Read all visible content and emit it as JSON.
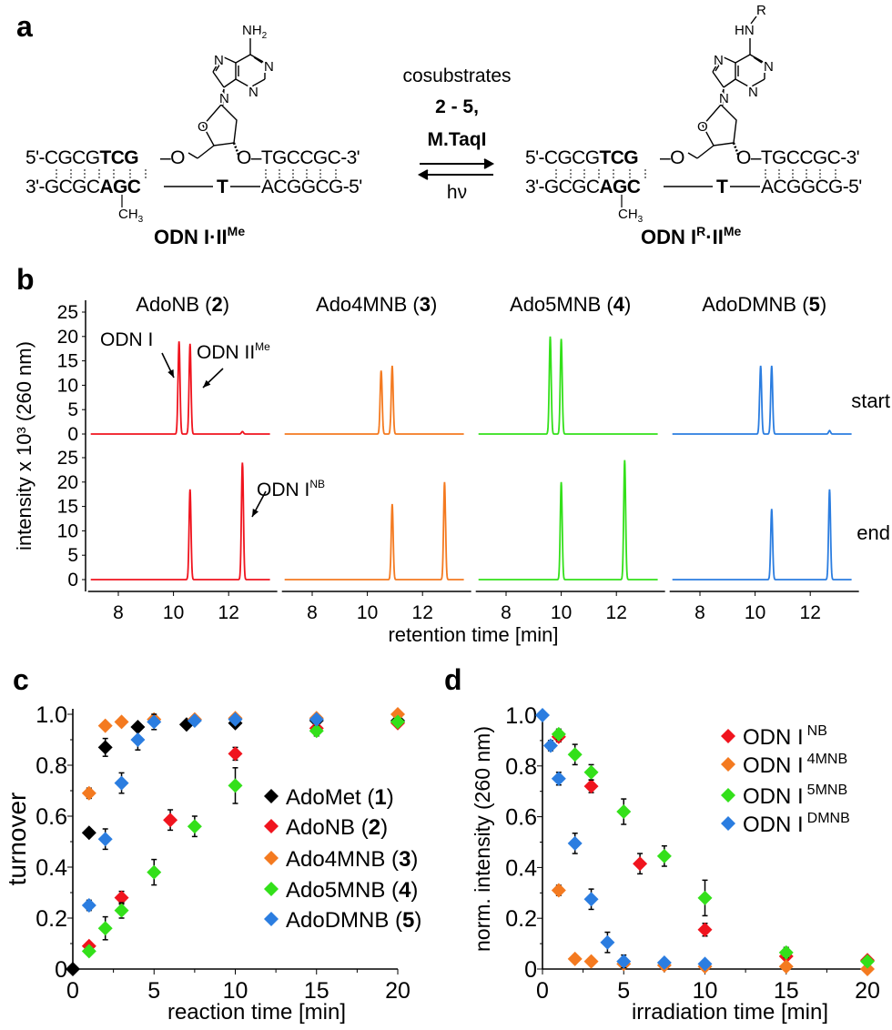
{
  "scheme": {
    "panel_label": "a",
    "atoms": {
      "n": "N",
      "o": "O",
      "nh": "NH",
      "sub2": "2",
      "hn": "HN",
      "r": "R"
    },
    "strands": {
      "top_5": "5'-CGCG",
      "top_bold": "TCG",
      "top_o": "–O",
      "top_3": "O–TGCCGC-3'",
      "bot_3": "3'-GCGC",
      "bot_bold": "AGC",
      "bot_t": "T",
      "bot_5": "ACGGCG-5'",
      "ch": "CH",
      "sub3": "3"
    },
    "left_label": {
      "main": "ODN I·II",
      "sup": "Me"
    },
    "right_label": {
      "main": "ODN I",
      "sup_r": "R",
      "mid": "·II",
      "sup": "Me"
    },
    "conditions": {
      "line1": "cosubstrates",
      "line2": "2 - 5,",
      "line3": "M.TaqI",
      "reverse": "hν"
    }
  },
  "chart_data": [
    {
      "panel_label": "b",
      "type": "line",
      "ylabel": "intensity x 10³ (260 nm)",
      "xlabel": "retention time [min]",
      "yticks": [
        0,
        5,
        10,
        15,
        20,
        25
      ],
      "xticks": [
        8,
        10,
        12
      ],
      "xlim": [
        7,
        13.5
      ],
      "ylim": [
        0,
        25
      ],
      "rows": [
        "start",
        "end"
      ],
      "annotations": {
        "odn1": "ODN I",
        "odn2": "ODN II",
        "odn2_sup": "Me",
        "odnnb": "ODN I",
        "odnnb_sup": "NB"
      },
      "panels": [
        {
          "name": "AdoNB",
          "num": "2",
          "color": "#f0141e",
          "start_peaks": [
            [
              10.2,
              19
            ],
            [
              10.6,
              18.5
            ],
            [
              12.5,
              0.5
            ]
          ],
          "end_peaks": [
            [
              10.6,
              18.5
            ],
            [
              12.5,
              24
            ]
          ]
        },
        {
          "name": "Ado4MNB",
          "num": "3",
          "color": "#f47a20",
          "start_peaks": [
            [
              10.5,
              13
            ],
            [
              10.9,
              14
            ]
          ],
          "end_peaks": [
            [
              10.9,
              15.5
            ],
            [
              12.8,
              20
            ]
          ]
        },
        {
          "name": "Ado5MNB",
          "num": "4",
          "color": "#33e01a",
          "start_peaks": [
            [
              9.6,
              20
            ],
            [
              10.0,
              19.5
            ]
          ],
          "end_peaks": [
            [
              10.0,
              20
            ],
            [
              12.3,
              24.5
            ]
          ]
        },
        {
          "name": "AdoDMNB",
          "num": "5",
          "color": "#2b7de0",
          "start_peaks": [
            [
              10.2,
              14
            ],
            [
              10.6,
              14
            ],
            [
              12.7,
              0.7
            ]
          ],
          "end_peaks": [
            [
              10.6,
              14.5
            ],
            [
              12.7,
              18.5
            ]
          ]
        }
      ]
    },
    {
      "panel_label": "c",
      "type": "scatter",
      "ylabel": "turnover",
      "xlabel": "reaction time [min]",
      "xlim": [
        0,
        20
      ],
      "ylim": [
        0,
        1.0
      ],
      "xticks": [
        "0",
        "5",
        "10",
        "15",
        "20"
      ],
      "yticks": [
        "0",
        "0.2",
        "0.4",
        "0.6",
        "0.8",
        "1.0"
      ],
      "legend_position": "right",
      "series": [
        {
          "name": "AdoMet",
          "num": "1",
          "color": "#000000",
          "points": [
            [
              0,
              0,
              0
            ],
            [
              1,
              0.535,
              0.005
            ],
            [
              2,
              0.87,
              0.035
            ],
            [
              4,
              0.95,
              0.015
            ],
            [
              7,
              0.96,
              0.005
            ],
            [
              10,
              0.965,
              0.01
            ],
            [
              15,
              0.975,
              0.01
            ],
            [
              20,
              0.975,
              0.01
            ]
          ]
        },
        {
          "name": "AdoNB",
          "num": "2",
          "color": "#f0141e",
          "points": [
            [
              1,
              0.09,
              0.01
            ],
            [
              3,
              0.28,
              0.025
            ],
            [
              6,
              0.585,
              0.04
            ],
            [
              10,
              0.845,
              0.025
            ],
            [
              15,
              0.945,
              0.02
            ],
            [
              20,
              0.965,
              0.005
            ]
          ]
        },
        {
          "name": "Ado4MNB",
          "num": "3",
          "color": "#f47a20",
          "points": [
            [
              1,
              0.69,
              0.02
            ],
            [
              2,
              0.955,
              0.005
            ],
            [
              3,
              0.97,
              0.005
            ],
            [
              5,
              0.98,
              0.01
            ],
            [
              7.5,
              0.98,
              0.005
            ],
            [
              10,
              0.985,
              0.005
            ],
            [
              15,
              0.985,
              0.005
            ],
            [
              20,
              1.0,
              0.005
            ]
          ]
        },
        {
          "name": "Ado5MNB",
          "num": "4",
          "color": "#33e01a",
          "points": [
            [
              1,
              0.07,
              0.01
            ],
            [
              2,
              0.16,
              0.045
            ],
            [
              3,
              0.23,
              0.03
            ],
            [
              5,
              0.38,
              0.05
            ],
            [
              7.5,
              0.56,
              0.04
            ],
            [
              10,
              0.72,
              0.07
            ],
            [
              15,
              0.935,
              0.02
            ],
            [
              20,
              0.97,
              0.005
            ]
          ]
        },
        {
          "name": "AdoDMNB",
          "num": "5",
          "color": "#2b7de0",
          "points": [
            [
              1,
              0.25,
              0.02
            ],
            [
              2,
              0.51,
              0.04
            ],
            [
              3,
              0.73,
              0.04
            ],
            [
              4,
              0.9,
              0.04
            ],
            [
              5,
              0.97,
              0.03
            ],
            [
              7.5,
              0.975,
              0.01
            ],
            [
              10,
              0.98,
              0.01
            ],
            [
              15,
              0.98,
              0.01
            ]
          ]
        }
      ]
    },
    {
      "panel_label": "d",
      "type": "scatter",
      "ylabel": "norm. intensity (260 nm)",
      "xlabel": "irradiation time [min]",
      "xlim": [
        0,
        20
      ],
      "ylim": [
        0,
        1.0
      ],
      "xticks": [
        "0",
        "5",
        "10",
        "15",
        "20"
      ],
      "yticks": [
        "0",
        "0.2",
        "0.4",
        "0.6",
        "0.8",
        "1.0"
      ],
      "legend_position": "top-right",
      "series": [
        {
          "name": "ODN I",
          "sup": "NB",
          "color": "#f0141e",
          "points": [
            [
              1,
              0.915,
              0.02
            ],
            [
              3,
              0.72,
              0.025
            ],
            [
              6,
              0.415,
              0.04
            ],
            [
              10,
              0.155,
              0.025
            ],
            [
              15,
              0.05,
              0.01
            ],
            [
              20,
              0.035,
              0.005
            ]
          ]
        },
        {
          "name": "ODN I",
          "sup": "4MNB",
          "color": "#f47a20",
          "points": [
            [
              1,
              0.31,
              0.02
            ],
            [
              2,
              0.04,
              0.005
            ],
            [
              3,
              0.03,
              0.005
            ],
            [
              5,
              0.02,
              0.005
            ],
            [
              7.5,
              0.015,
              0.005
            ],
            [
              10,
              0.01,
              0.005
            ],
            [
              15,
              0.01,
              0.005
            ],
            [
              20,
              0.0,
              0.005
            ]
          ]
        },
        {
          "name": "ODN I",
          "sup": "5MNB",
          "color": "#33e01a",
          "points": [
            [
              1,
              0.925,
              0.02
            ],
            [
              2,
              0.845,
              0.04
            ],
            [
              3,
              0.775,
              0.03
            ],
            [
              5,
              0.62,
              0.05
            ],
            [
              7.5,
              0.445,
              0.04
            ],
            [
              10,
              0.28,
              0.07
            ],
            [
              15,
              0.065,
              0.02
            ],
            [
              20,
              0.03,
              0.005
            ]
          ]
        },
        {
          "name": "ODN I",
          "sup": "DMNB",
          "color": "#2b7de0",
          "points": [
            [
              0,
              1.0,
              0
            ],
            [
              0.5,
              0.88,
              0.02
            ],
            [
              1,
              0.75,
              0.025
            ],
            [
              2,
              0.495,
              0.04
            ],
            [
              3,
              0.275,
              0.04
            ],
            [
              4,
              0.105,
              0.04
            ],
            [
              5,
              0.03,
              0.025
            ],
            [
              7.5,
              0.025,
              0.005
            ],
            [
              10,
              0.02,
              0.005
            ]
          ]
        }
      ]
    }
  ]
}
